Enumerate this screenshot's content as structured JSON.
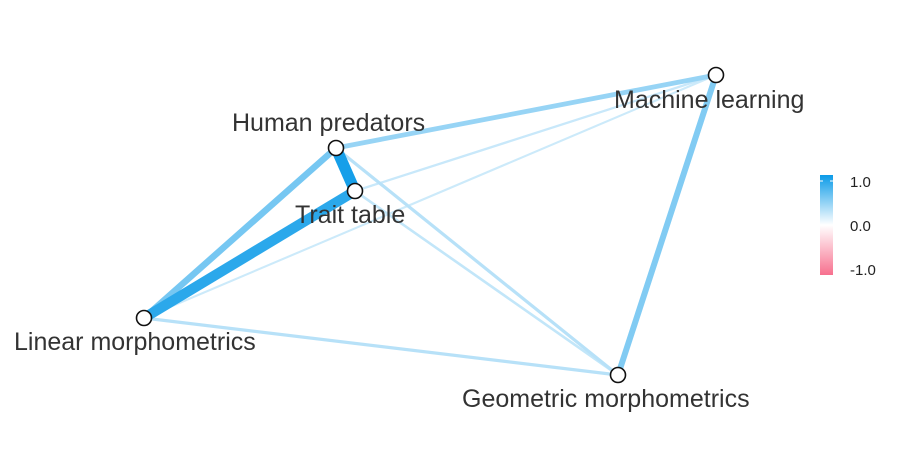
{
  "network": {
    "nodes": [
      {
        "id": "human",
        "label": "Human predators"
      },
      {
        "id": "trait",
        "label": "Trait table"
      },
      {
        "id": "ml",
        "label": "Machine learning"
      },
      {
        "id": "linear",
        "label": "Linear morphometrics"
      },
      {
        "id": "geometric",
        "label": "Geometric morphometrics"
      }
    ],
    "edges": [
      {
        "from": "linear",
        "to": "trait",
        "value": 0.85
      },
      {
        "from": "human",
        "to": "trait",
        "value": 0.95
      },
      {
        "from": "linear",
        "to": "human",
        "value": 0.5
      },
      {
        "from": "ml",
        "to": "geometric",
        "value": 0.45
      },
      {
        "from": "human",
        "to": "ml",
        "value": 0.35
      },
      {
        "from": "linear",
        "to": "geometric",
        "value": 0.2
      },
      {
        "from": "human",
        "to": "geometric",
        "value": 0.2
      },
      {
        "from": "trait",
        "to": "geometric",
        "value": 0.15
      },
      {
        "from": "trait",
        "to": "ml",
        "value": 0.12
      },
      {
        "from": "linear",
        "to": "ml",
        "value": 0.1
      }
    ]
  },
  "legend": {
    "max_label": "1.0",
    "mid_label": "0.0",
    "min_label": "-1.0",
    "positive_color": "#0b9be8",
    "neutral_color": "#ffffff",
    "negative_color": "#f7708e"
  }
}
